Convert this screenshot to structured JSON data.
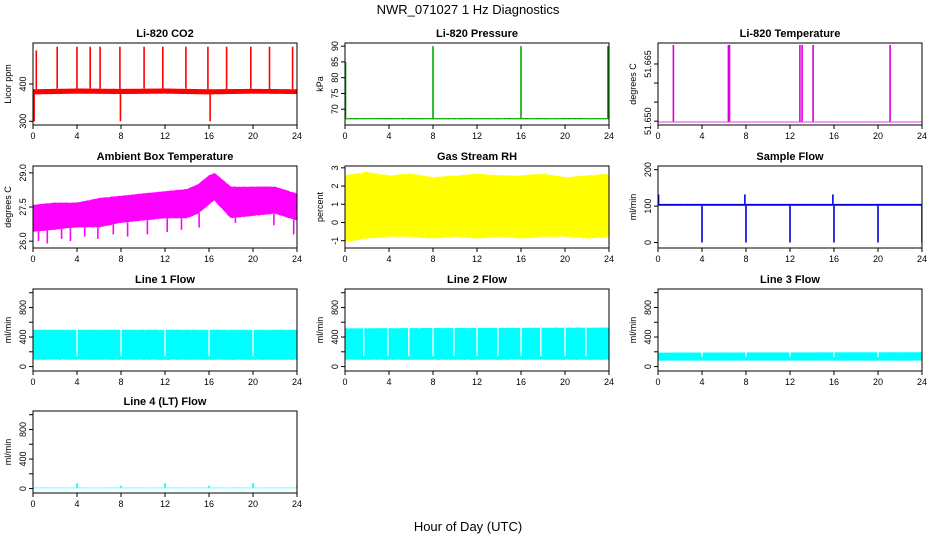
{
  "figure": {
    "title": "NWR_071027  1 Hz Diagnostics",
    "xlabel": "Hour of Day (UTC)"
  },
  "chart_data": [
    {
      "type": "line",
      "title": "Li-820 CO2",
      "ylabel": "Licor ppm",
      "color": "#ff0000",
      "xlim": [
        0,
        24
      ],
      "xticks": [
        0,
        4,
        8,
        12,
        16,
        20,
        24
      ],
      "ylim": [
        290,
        510
      ],
      "yticks": [
        300,
        400
      ],
      "series": [
        {
          "kind": "band",
          "x": [
            0,
            4,
            8,
            12,
            16,
            20,
            24
          ],
          "low": [
            372,
            374,
            373,
            374,
            372,
            374,
            373
          ],
          "high": [
            386,
            388,
            387,
            388,
            386,
            387,
            386
          ]
        },
        {
          "kind": "spikes",
          "x": [
            0.3,
            2.2,
            4.0,
            5.2,
            6.1,
            7.9,
            10.1,
            11.8,
            13.9,
            15.9,
            17.6,
            19.8,
            21.5,
            23.6
          ],
          "values": [
            490,
            500,
            500,
            500,
            500,
            500,
            500,
            500,
            500,
            500,
            500,
            500,
            500,
            500
          ]
        },
        {
          "kind": "spikes",
          "x": [
            0.1,
            7.95,
            16.1
          ],
          "values": [
            300,
            300,
            300
          ]
        }
      ]
    },
    {
      "type": "line",
      "title": "Li-820 Pressure",
      "ylabel": "kPa",
      "color": "#00aa00",
      "xlim": [
        0,
        24
      ],
      "xticks": [
        0,
        4,
        8,
        12,
        16,
        20,
        24
      ],
      "ylim": [
        65,
        91
      ],
      "yticks": [
        70,
        75,
        80,
        85,
        90
      ],
      "series": [
        {
          "kind": "band",
          "x": [
            0,
            24
          ],
          "low": [
            66.8,
            66.8
          ],
          "high": [
            67.2,
            67.2
          ]
        },
        {
          "kind": "spikes",
          "x": [
            0.05,
            8.0,
            16.0,
            23.9
          ],
          "values": [
            85,
            90,
            90,
            90
          ]
        }
      ]
    },
    {
      "type": "line",
      "title": "Li-820 Temperature",
      "ylabel": "degrees C",
      "color": "#dd00dd",
      "xlim": [
        0,
        24
      ],
      "xticks": [
        0,
        4,
        8,
        12,
        16,
        20,
        24
      ],
      "ylim": [
        51.649,
        51.6705
      ],
      "yticks": [
        51.65,
        51.655,
        51.66,
        51.665
      ],
      "ytick_labels": [
        "51.650",
        "",
        "",
        "51.665"
      ],
      "series": [
        {
          "kind": "band",
          "x": [
            0,
            24
          ],
          "low": [
            51.6497,
            51.6497
          ],
          "high": [
            51.6499,
            51.6499
          ]
        },
        {
          "kind": "spikes",
          "x": [
            1.4,
            6.4,
            6.5,
            12.9,
            13.1,
            14.1,
            21.1
          ],
          "values": [
            51.67,
            51.67,
            51.67,
            51.67,
            51.67,
            51.67,
            51.67
          ]
        }
      ]
    },
    {
      "type": "line",
      "title": "Ambient Box Temperature",
      "ylabel": "degrees C",
      "color": "#ff00ff",
      "xlim": [
        0,
        24
      ],
      "xticks": [
        0,
        4,
        8,
        12,
        16,
        20,
        24
      ],
      "ylim": [
        25.7,
        29.3
      ],
      "yticks": [
        26.0,
        27.5,
        29.0
      ],
      "ytick_labels": [
        "26.0",
        "27.5",
        "29.0"
      ],
      "series": [
        {
          "kind": "band",
          "x": [
            0,
            2,
            4,
            6,
            8,
            10,
            12,
            14,
            15,
            16,
            16.5,
            17,
            18,
            20,
            22,
            24
          ],
          "low": [
            26.4,
            26.5,
            26.6,
            26.6,
            26.8,
            26.9,
            27.0,
            27.0,
            27.2,
            27.6,
            27.8,
            27.5,
            27.0,
            27.1,
            27.2,
            26.9
          ],
          "high": [
            27.6,
            27.7,
            27.7,
            27.9,
            28.0,
            28.1,
            28.2,
            28.3,
            28.5,
            28.9,
            29.0,
            28.8,
            28.4,
            28.4,
            28.4,
            28.1
          ]
        },
        {
          "kind": "dips",
          "x": [
            0.5,
            1.3,
            2.6,
            3.4,
            4.7,
            5.9,
            7.3,
            8.6,
            10.4,
            12.2,
            13.5,
            15.1,
            18.4,
            21.9,
            23.7
          ],
          "values": [
            26.0,
            25.9,
            26.1,
            26.0,
            26.2,
            26.1,
            26.3,
            26.2,
            26.3,
            26.4,
            26.5,
            26.6,
            26.8,
            26.7,
            26.3
          ]
        }
      ]
    },
    {
      "type": "line",
      "title": "Gas Stream RH",
      "ylabel": "percent",
      "color": "#ffff00",
      "xlim": [
        0,
        24
      ],
      "xticks": [
        0,
        4,
        8,
        12,
        16,
        20,
        24
      ],
      "ylim": [
        -1.4,
        3.1
      ],
      "yticks": [
        -1,
        0,
        1,
        2,
        3
      ],
      "series": [
        {
          "kind": "band",
          "x": [
            0,
            2,
            4,
            6,
            8,
            10,
            12,
            14,
            16,
            18,
            20,
            22,
            24
          ],
          "low": [
            -1.1,
            -0.9,
            -0.8,
            -0.8,
            -0.9,
            -0.8,
            -0.9,
            -0.8,
            -0.9,
            -0.8,
            -0.8,
            -0.9,
            -0.8
          ],
          "high": [
            2.6,
            2.8,
            2.6,
            2.7,
            2.5,
            2.6,
            2.7,
            2.6,
            2.6,
            2.7,
            2.5,
            2.6,
            2.7
          ]
        }
      ]
    },
    {
      "type": "line",
      "title": "Sample Flow",
      "ylabel": "ml/min",
      "color": "#0000dd",
      "xlim": [
        0,
        24
      ],
      "xticks": [
        0,
        4,
        8,
        12,
        16,
        20,
        24
      ],
      "ylim": [
        -15,
        210
      ],
      "yticks": [
        0,
        100,
        200
      ],
      "series": [
        {
          "kind": "band",
          "x": [
            0,
            24
          ],
          "low": [
            101,
            101
          ],
          "high": [
            106,
            106
          ]
        },
        {
          "kind": "spikes",
          "x": [
            0.05,
            7.9,
            15.9
          ],
          "values": [
            132,
            132,
            132
          ]
        },
        {
          "kind": "dips",
          "x": [
            4.0,
            8.0,
            12.0,
            16.0,
            20.0,
            24.0
          ],
          "values": [
            0,
            0,
            0,
            0,
            0,
            0
          ]
        }
      ]
    },
    {
      "type": "line",
      "title": "Line 1 Flow",
      "ylabel": "ml/min",
      "color": "#00ffff",
      "xlim": [
        0,
        24
      ],
      "xticks": [
        0,
        4,
        8,
        12,
        16,
        20,
        24
      ],
      "ylim": [
        -60,
        1050
      ],
      "yticks": [
        0,
        200,
        400,
        600,
        800,
        1000
      ],
      "ytick_labels": [
        "0",
        "",
        "400",
        "",
        "800",
        ""
      ],
      "series": [
        {
          "kind": "band",
          "x": [
            0,
            24
          ],
          "low": [
            90,
            90
          ],
          "high": [
            500,
            500
          ]
        },
        {
          "kind": "gaps",
          "x": [
            4,
            8,
            12,
            16,
            20
          ],
          "values": [
            100,
            100,
            100,
            100,
            100
          ]
        }
      ]
    },
    {
      "type": "line",
      "title": "Line 2 Flow",
      "ylabel": "ml/min",
      "color": "#00ffff",
      "xlim": [
        0,
        24
      ],
      "xticks": [
        0,
        4,
        8,
        12,
        16,
        20,
        24
      ],
      "ylim": [
        -60,
        1050
      ],
      "yticks": [
        0,
        200,
        400,
        600,
        800,
        1000
      ],
      "ytick_labels": [
        "0",
        "",
        "400",
        "",
        "800",
        ""
      ],
      "series": [
        {
          "kind": "band",
          "x": [
            0,
            24
          ],
          "low": [
            90,
            90
          ],
          "high": [
            520,
            530
          ]
        },
        {
          "kind": "gaps",
          "x": [
            1.7,
            3.9,
            5.8,
            8.0,
            9.9,
            12.0,
            13.9,
            16.0,
            17.8,
            20.0,
            21.9
          ],
          "values": [
            100,
            100,
            100,
            100,
            100,
            100,
            100,
            100,
            100,
            100,
            100
          ]
        }
      ]
    },
    {
      "type": "line",
      "title": "Line 3 Flow",
      "ylabel": "ml/min",
      "color": "#00ffff",
      "xlim": [
        0,
        24
      ],
      "xticks": [
        0,
        4,
        8,
        12,
        16,
        20,
        24
      ],
      "ylim": [
        -60,
        1050
      ],
      "yticks": [
        0,
        200,
        400,
        600,
        800,
        1000
      ],
      "ytick_labels": [
        "0",
        "",
        "400",
        "",
        "800",
        ""
      ],
      "series": [
        {
          "kind": "band",
          "x": [
            0,
            24
          ],
          "low": [
            80,
            80
          ],
          "high": [
            190,
            195
          ]
        },
        {
          "kind": "gaps",
          "x": [
            4,
            8,
            12,
            16,
            20
          ],
          "values": [
            90,
            90,
            90,
            90,
            90
          ]
        }
      ]
    },
    {
      "type": "line",
      "title": "Line 4 (LT) Flow",
      "ylabel": "ml/min",
      "color": "#00ffff",
      "xlim": [
        0,
        24
      ],
      "xticks": [
        0,
        4,
        8,
        12,
        16,
        20,
        24
      ],
      "ylim": [
        -60,
        1050
      ],
      "yticks": [
        0,
        200,
        400,
        600,
        800,
        1000
      ],
      "ytick_labels": [
        "0",
        "",
        "400",
        "",
        "800",
        ""
      ],
      "series": [
        {
          "kind": "band",
          "x": [
            0,
            24
          ],
          "low": [
            5,
            5
          ],
          "high": [
            12,
            12
          ]
        },
        {
          "kind": "spikes",
          "x": [
            4.0,
            8.0,
            12.0,
            16.0,
            20.0,
            24.0
          ],
          "values": [
            75,
            40,
            75,
            40,
            75,
            45
          ]
        }
      ]
    }
  ]
}
